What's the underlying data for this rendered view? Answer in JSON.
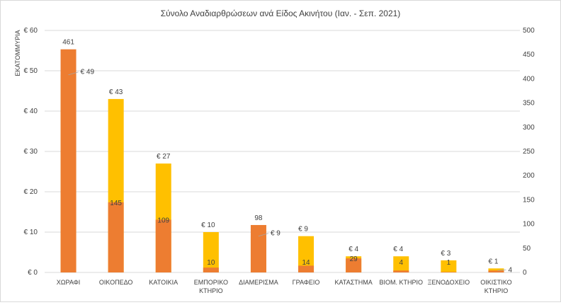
{
  "chart_data": {
    "type": "bar",
    "title": "Σύνολο Αναδιαρθρώσεων ανά Είδος Ακινήτου (Ιαν. - Σεπ. 2021)",
    "ylabel": "ΕΚΑΤΟΜΜΥΡΙΑ",
    "ylim": [
      0,
      60
    ],
    "y_ticks": [
      "€ 0",
      "€ 10",
      "€ 20",
      "€ 30",
      "€ 40",
      "€ 50",
      "€ 60"
    ],
    "y2lim": [
      0,
      500
    ],
    "y2_ticks": [
      "0",
      "50",
      "100",
      "150",
      "200",
      "250",
      "300",
      "350",
      "400",
      "450",
      "500"
    ],
    "grid": true,
    "colors": {
      "amount": "#ffc000",
      "count": "#ed7d31"
    },
    "categories": [
      [
        "ΧΩΡΑΦΙ"
      ],
      [
        "ΟΙΚΟΠΕΔΟ"
      ],
      [
        "ΚΑΤΟΙΚΙΑ"
      ],
      [
        "ΕΜΠΟΡΙΚΟ",
        "ΚΤΗΡΙΟ"
      ],
      [
        "ΔΙΑΜΕΡΙΣΜΑ"
      ],
      [
        "ΓΡΑΦΕΙΟ"
      ],
      [
        "ΚΑΤΑΣΤΗΜΑ"
      ],
      [
        "ΒΙΟΜ. ΚΤΗΡΙΟ"
      ],
      [
        "ΞΕΝΟΔΟΧΕΙΟ"
      ],
      [
        "ΟΙΚΙΣΤΙΚΟ",
        "ΚΤΗΡΙΟ"
      ]
    ],
    "series": [
      {
        "axis": "left",
        "values": [
          49,
          43,
          27,
          10,
          9,
          9,
          4,
          4,
          3,
          1
        ],
        "labels": [
          "€ 49",
          "€ 43",
          "€ 27",
          "€ 10",
          "€ 9",
          "€ 9",
          "€ 4",
          "€ 4",
          "€ 3",
          "€ 1"
        ]
      },
      {
        "axis": "right",
        "values": [
          461,
          145,
          109,
          10,
          98,
          14,
          29,
          4,
          1,
          4
        ],
        "labels": [
          "461",
          "145",
          "109",
          "10",
          "98",
          "14",
          "29",
          "4",
          "1",
          "4"
        ]
      }
    ]
  }
}
